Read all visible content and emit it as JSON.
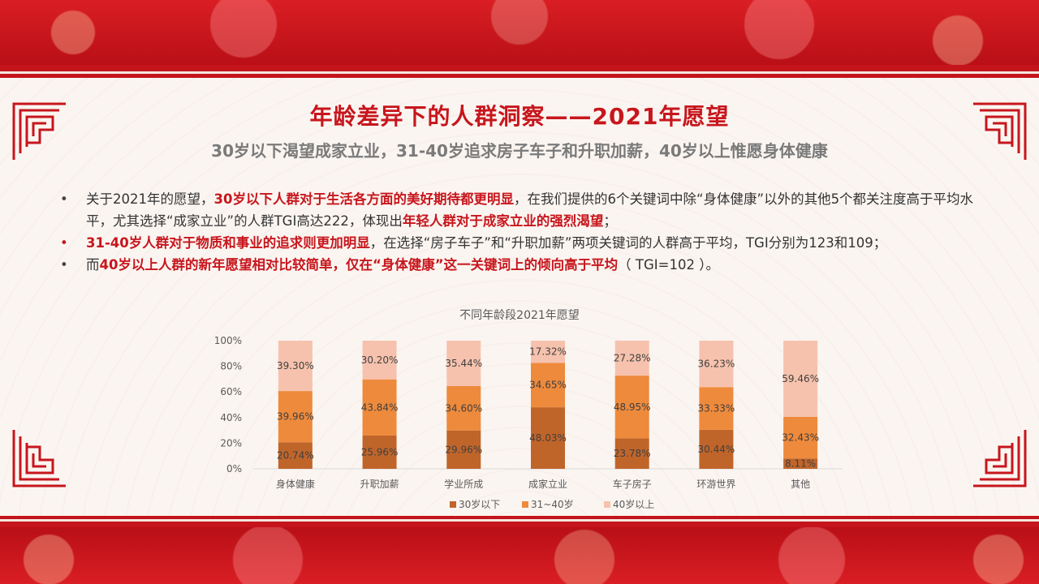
{
  "slide": {
    "title": "年龄差异下的人群洞察——2021年愿望",
    "subtitle": "30岁以下渴望成家立业，31-40岁追求房子车子和升职加薪，40岁以上惟愿身体健康"
  },
  "bullets": [
    {
      "dot_color": "gray",
      "parts": [
        {
          "text": "关于2021年的愿望，",
          "hl": false
        },
        {
          "text": "30岁以下人群对于生活各方面的美好期待都更明显",
          "hl": true
        },
        {
          "text": "，在我们提供的6个关键词中除“身体健康”以外的其他5个都关注度高于平均水平，尤其选择“成家立业”的人群TGI高达222，体现出",
          "hl": false
        },
        {
          "text": "年轻人群对于成家立业的强烈渴望",
          "hl": true
        },
        {
          "text": "；",
          "hl": false
        }
      ]
    },
    {
      "dot_color": "red",
      "parts": [
        {
          "text": "31-40岁人群对于物质和事业的追求则更加明显",
          "hl": true
        },
        {
          "text": "，在选择“房子车子”和“升职加薪”两项关键词的人群高于平均，TGI分别为123和109；",
          "hl": false
        }
      ]
    },
    {
      "dot_color": "gray",
      "parts": [
        {
          "text": "而",
          "hl": false
        },
        {
          "text": "40岁以上人群的新年愿望相对比较简单，仅在“身体健康”这一关键词上的倾向高于平均",
          "hl": true
        },
        {
          "text": "（ TGI=102 ）。",
          "hl": false
        }
      ]
    }
  ],
  "chart_data": {
    "type": "bar",
    "stacked": true,
    "title": "不同年龄段2021年愿望",
    "categories": [
      "身体健康",
      "升职加薪",
      "学业所成",
      "成家立业",
      "车子房子",
      "环游世界",
      "其他"
    ],
    "series": [
      {
        "name": "30岁以下",
        "color": "#c0652a",
        "values": [
          20.74,
          25.96,
          29.96,
          48.03,
          23.78,
          30.44,
          8.11
        ]
      },
      {
        "name": "31~40岁",
        "color": "#ee8a3c",
        "values": [
          39.96,
          43.84,
          34.6,
          34.65,
          48.95,
          33.33,
          32.43
        ]
      },
      {
        "name": "40岁以上",
        "color": "#f6c2ad",
        "values": [
          39.3,
          30.2,
          35.44,
          17.32,
          27.28,
          36.23,
          59.46
        ]
      }
    ],
    "y_ticks": [
      "0%",
      "20%",
      "40%",
      "60%",
      "80%",
      "100%"
    ],
    "ylim": [
      0,
      100
    ],
    "legend_position": "bottom"
  }
}
